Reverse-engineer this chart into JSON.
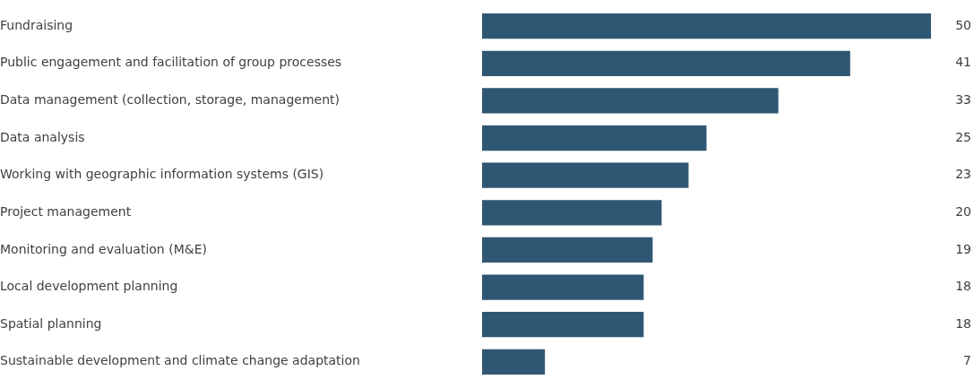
{
  "chart_data": {
    "type": "bar",
    "orientation": "horizontal",
    "categories": [
      "Fundraising",
      "Public engagement and facilitation of group processes",
      "Data management (collection, storage, management)",
      "Data analysis",
      "Working with geographic information systems (GIS)",
      "Project management",
      "Monitoring and evaluation (M&E)",
      "Local development planning",
      "Spatial planning",
      "Sustainable development and climate change adaptation"
    ],
    "values": [
      50,
      41,
      33,
      25,
      23,
      20,
      19,
      18,
      18,
      7
    ],
    "color": "#2f5773",
    "data_labels": true,
    "grid": false,
    "legend": false
  }
}
